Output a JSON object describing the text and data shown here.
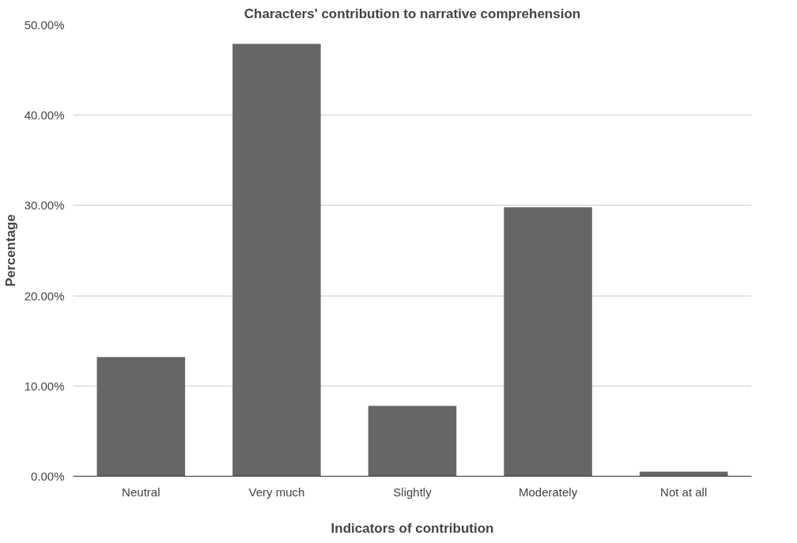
{
  "chart_data": {
    "type": "bar",
    "title": "Characters' contribution to narrative comprehension",
    "xlabel": "Indicators of contribution",
    "ylabel": "Percentage",
    "categories": [
      "Neutral",
      "Very much",
      "Slightly",
      "Moderately",
      "Not at all"
    ],
    "values": [
      13.2,
      47.9,
      7.8,
      29.8,
      0.5
    ],
    "color": "#666666",
    "ylim": [
      0,
      50
    ],
    "yticks": [
      {
        "value": 0,
        "label": "0.00%"
      },
      {
        "value": 10,
        "label": "10.00%"
      },
      {
        "value": 20,
        "label": "20.00%"
      },
      {
        "value": 30,
        "label": "30.00%"
      },
      {
        "value": 40,
        "label": "40.00%"
      },
      {
        "value": 50,
        "label": "50.00%"
      }
    ],
    "grid": "y"
  }
}
